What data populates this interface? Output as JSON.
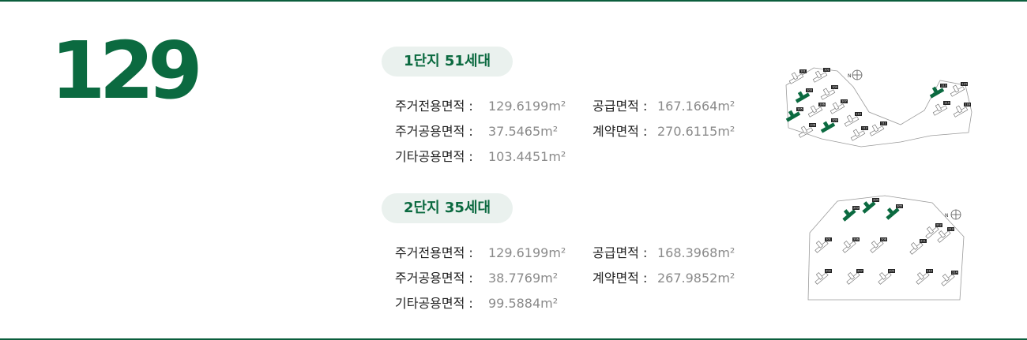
{
  "type_number": "129",
  "complexes": [
    {
      "title": "1단지 51세대",
      "rows": [
        [
          {
            "label": "주거전용면적 :",
            "value": "129.6199m²"
          },
          {
            "label": "공급면적 :",
            "value": "167.1664m²"
          }
        ],
        [
          {
            "label": "주거공용면적 :",
            "value": "37.5465m²"
          },
          {
            "label": "계약면적 :",
            "value": "270.6115m²"
          }
        ],
        [
          {
            "label": "기타공용면적 :",
            "value": "103.4451m²"
          }
        ]
      ],
      "map": {
        "compass_letter": "N",
        "building_labels": [
          "101",
          "102",
          "103",
          "104",
          "105",
          "106",
          "107",
          "108",
          "109",
          "110",
          "111",
          "112",
          "113",
          "114",
          "115",
          "116"
        ],
        "highlight_color": "#0b6a40"
      }
    },
    {
      "title": "2단지 35세대",
      "rows": [
        [
          {
            "label": "주거전용면적 :",
            "value": "129.6199m²"
          },
          {
            "label": "공급면적 :",
            "value": "168.3968m²"
          }
        ],
        [
          {
            "label": "주거공용면적 :",
            "value": "38.7769m²"
          },
          {
            "label": "계약면적 :",
            "value": "267.9852m²"
          }
        ],
        [
          {
            "label": "기타공용면적 :",
            "value": "99.5884m²"
          }
        ]
      ],
      "map": {
        "compass_letter": "N",
        "building_labels": [
          "201",
          "202",
          "203",
          "204",
          "205",
          "206",
          "207",
          "208",
          "209",
          "210",
          "211",
          "212",
          "213",
          "214"
        ],
        "highlight_color": "#0b6a40"
      }
    }
  ]
}
